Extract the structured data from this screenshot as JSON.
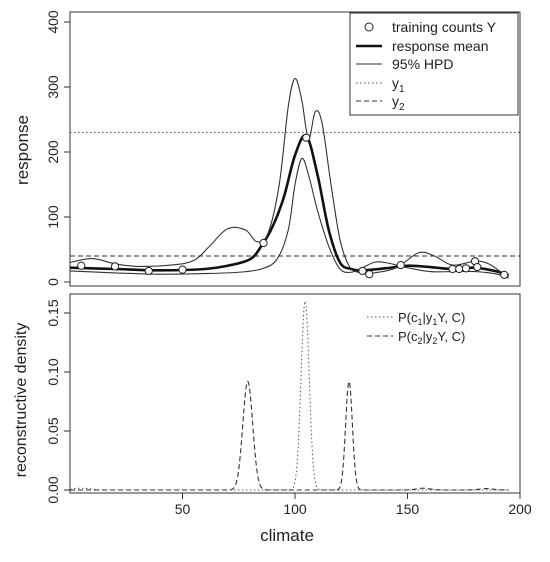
{
  "chart_data": [
    {
      "type": "line",
      "ylabel": "response",
      "xlim": [
        0,
        200
      ],
      "ylim": [
        0,
        400
      ],
      "yticks": [
        0,
        100,
        200,
        300,
        400
      ],
      "legend_placement": "top-right",
      "legend": [
        {
          "label": "training counts Y",
          "style": "circle"
        },
        {
          "label": "response mean",
          "style": "thick"
        },
        {
          "label": "95% HPD",
          "style": "thin"
        },
        {
          "label": "y",
          "sub": "1",
          "style": "dotted"
        },
        {
          "label": "y",
          "sub": "2",
          "style": "dashed"
        }
      ],
      "reference_lines": [
        {
          "name": "y1",
          "value": 230,
          "style": "dotted"
        },
        {
          "name": "y2",
          "value": 40,
          "style": "dashed"
        }
      ],
      "training_points": {
        "x": [
          5,
          20,
          35,
          50,
          86,
          105,
          130,
          133,
          147,
          170,
          173,
          176,
          180,
          181,
          193
        ],
        "y": [
          25,
          24,
          17,
          19,
          60,
          222,
          17,
          12,
          26,
          20,
          20,
          21,
          32,
          23,
          11
        ]
      },
      "series": [
        {
          "name": "response mean",
          "style": "thick",
          "x": [
            0,
            20,
            40,
            60,
            70,
            80,
            85,
            90,
            95,
            100,
            105,
            110,
            115,
            120,
            125,
            130,
            140,
            150,
            160,
            170,
            180,
            190,
            195
          ],
          "y": [
            22,
            20,
            18,
            20,
            25,
            35,
            55,
            85,
            130,
            195,
            225,
            165,
            80,
            30,
            20,
            18,
            21,
            25,
            23,
            20,
            22,
            16,
            10
          ]
        },
        {
          "name": "95% HPD upper",
          "style": "thin",
          "x": [
            0,
            10,
            20,
            30,
            45,
            55,
            62,
            70,
            78,
            83,
            88,
            93,
            97,
            100,
            103,
            106,
            109,
            112,
            116,
            120,
            124,
            128,
            135,
            145,
            155,
            162,
            170,
            180,
            186,
            192
          ],
          "y": [
            30,
            36,
            28,
            24,
            26,
            33,
            55,
            82,
            80,
            62,
            75,
            150,
            270,
            313,
            280,
            220,
            262,
            245,
            150,
            65,
            25,
            15,
            14,
            22,
            45,
            40,
            26,
            32,
            28,
            14
          ]
        },
        {
          "name": "95% HPD lower",
          "style": "thin",
          "x": [
            0,
            20,
            40,
            60,
            75,
            85,
            92,
            97,
            100,
            103,
            106,
            110,
            115,
            120,
            125,
            130,
            135,
            140,
            150,
            160,
            170,
            180,
            190,
            195
          ],
          "y": [
            17,
            14,
            12,
            13,
            15,
            20,
            35,
            80,
            150,
            190,
            165,
            110,
            55,
            20,
            15,
            22,
            30,
            30,
            22,
            16,
            16,
            16,
            12,
            6
          ]
        }
      ]
    },
    {
      "type": "line",
      "xlabel": "climate",
      "ylabel": "reconstructive density",
      "xlim": [
        0,
        200
      ],
      "ylim": [
        0,
        0.15
      ],
      "xticks": [
        50,
        100,
        150,
        200
      ],
      "yticks": [
        "0.00",
        "0.05",
        "0.10",
        "0.15"
      ],
      "legend_placement": "top-right",
      "legend": [
        {
          "label": "P(c",
          "sub1": "1",
          "mid": "|y",
          "sub2": "1",
          "end": "Y, C)",
          "style": "dotted"
        },
        {
          "label": "P(c",
          "sub1": "2",
          "mid": "|y",
          "sub2": "2",
          "end": "Y, C)",
          "style": "dashed"
        }
      ],
      "series": [
        {
          "name": "P(c1|y1Y, C)",
          "style": "dotted",
          "peaks": [
            {
              "center": 104.5,
              "height": 0.16,
              "width": 1.8
            }
          ],
          "bumps": [
            {
              "center": 5,
              "height": 0.0015,
              "width": 4
            }
          ]
        },
        {
          "name": "P(c2|y2Y, C)",
          "style": "dashed",
          "peaks": [
            {
              "center": 79,
              "height": 0.092,
              "width": 2.2
            },
            {
              "center": 124,
              "height": 0.092,
              "width": 1.5
            }
          ],
          "bumps": [
            {
              "center": 157,
              "height": 0.0015,
              "width": 3
            },
            {
              "center": 185,
              "height": 0.0012,
              "width": 3
            }
          ]
        }
      ]
    }
  ]
}
